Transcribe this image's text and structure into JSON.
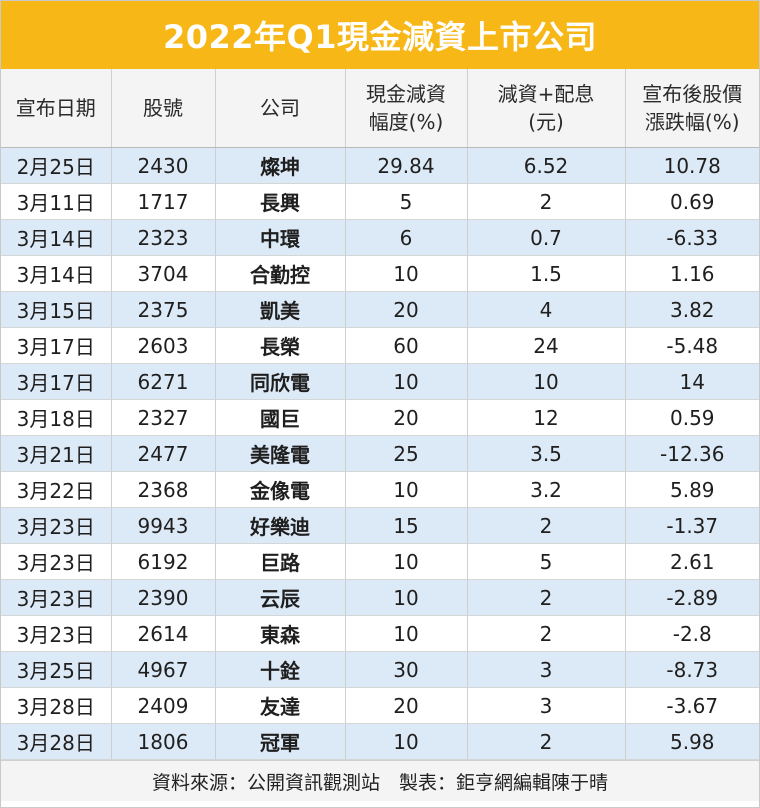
{
  "title": "2022年Q1現金減資上市公司",
  "headers": [
    "宣布日期",
    "股號",
    "公司",
    "現金減資\n幅度(%)",
    "減資+配息\n(元)",
    "宣布後股價\n漲跌幅(%)"
  ],
  "rows": [
    {
      "date": "2月25日",
      "code": "2430",
      "company": "燦坤",
      "reduction_pct": "29.84",
      "per_share": "6.52",
      "price_change_pct": "10.78"
    },
    {
      "date": "3月11日",
      "code": "1717",
      "company": "長興",
      "reduction_pct": "5",
      "per_share": "2",
      "price_change_pct": "0.69"
    },
    {
      "date": "3月14日",
      "code": "2323",
      "company": "中環",
      "reduction_pct": "6",
      "per_share": "0.7",
      "price_change_pct": "-6.33"
    },
    {
      "date": "3月14日",
      "code": "3704",
      "company": "合勤控",
      "reduction_pct": "10",
      "per_share": "1.5",
      "price_change_pct": "1.16"
    },
    {
      "date": "3月15日",
      "code": "2375",
      "company": "凱美",
      "reduction_pct": "20",
      "per_share": "4",
      "price_change_pct": "3.82"
    },
    {
      "date": "3月17日",
      "code": "2603",
      "company": "長榮",
      "reduction_pct": "60",
      "per_share": "24",
      "price_change_pct": "-5.48"
    },
    {
      "date": "3月17日",
      "code": "6271",
      "company": "同欣電",
      "reduction_pct": "10",
      "per_share": "10",
      "price_change_pct": "14"
    },
    {
      "date": "3月18日",
      "code": "2327",
      "company": "國巨",
      "reduction_pct": "20",
      "per_share": "12",
      "price_change_pct": "0.59"
    },
    {
      "date": "3月21日",
      "code": "2477",
      "company": "美隆電",
      "reduction_pct": "25",
      "per_share": "3.5",
      "price_change_pct": "-12.36"
    },
    {
      "date": "3月22日",
      "code": "2368",
      "company": "金像電",
      "reduction_pct": "10",
      "per_share": "3.2",
      "price_change_pct": "5.89"
    },
    {
      "date": "3月23日",
      "code": "9943",
      "company": "好樂迪",
      "reduction_pct": "15",
      "per_share": "2",
      "price_change_pct": "-1.37"
    },
    {
      "date": "3月23日",
      "code": "6192",
      "company": "巨路",
      "reduction_pct": "10",
      "per_share": "5",
      "price_change_pct": "2.61"
    },
    {
      "date": "3月23日",
      "code": "2390",
      "company": "云辰",
      "reduction_pct": "10",
      "per_share": "2",
      "price_change_pct": "-2.89"
    },
    {
      "date": "3月23日",
      "code": "2614",
      "company": "東森",
      "reduction_pct": "10",
      "per_share": "2",
      "price_change_pct": "-2.8"
    },
    {
      "date": "3月25日",
      "code": "4967",
      "company": "十銓",
      "reduction_pct": "30",
      "per_share": "3",
      "price_change_pct": "-8.73"
    },
    {
      "date": "3月28日",
      "code": "2409",
      "company": "友達",
      "reduction_pct": "20",
      "per_share": "3",
      "price_change_pct": "-3.67"
    },
    {
      "date": "3月28日",
      "code": "1806",
      "company": "冠軍",
      "reduction_pct": "10",
      "per_share": "2",
      "price_change_pct": "5.98"
    }
  ],
  "footer": "資料來源：公開資訊觀測站　製表：鉅亨網編輯陳于晴",
  "colors": {
    "title_bg": "#f7b717",
    "title_text": "#ffffff",
    "row_highlight": "#dce9f6",
    "header_bg": "#f4f4f4"
  }
}
